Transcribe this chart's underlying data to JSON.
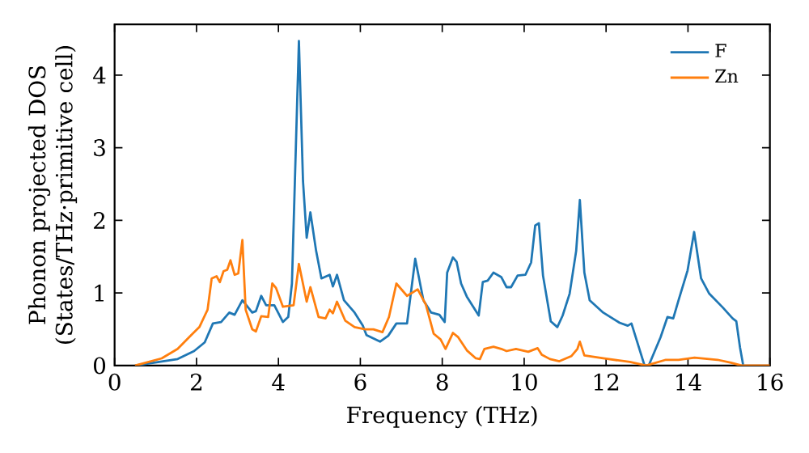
{
  "chart_data": {
    "type": "line",
    "xlabel": "Frequency (THz)",
    "ylabel": "Phonon projected DOS (States/THz·primitive cell)",
    "xlim": [
      0,
      16
    ],
    "ylim": [
      0,
      4.7
    ],
    "xticks": [
      0,
      2,
      4,
      6,
      8,
      10,
      12,
      14,
      16
    ],
    "yticks": [
      0,
      1,
      2,
      3,
      4
    ],
    "legend": "top right",
    "grid": false,
    "series": [
      {
        "name": "F",
        "color": "#1f77b4",
        "x": [
          0.5,
          1.54,
          1.94,
          2.2,
          2.4,
          2.6,
          2.8,
          2.93,
          3.12,
          3.36,
          3.45,
          3.58,
          3.7,
          3.83,
          3.9,
          4.11,
          4.24,
          4.33,
          4.5,
          4.6,
          4.69,
          4.78,
          4.92,
          5.05,
          5.25,
          5.33,
          5.43,
          5.6,
          5.86,
          6.06,
          6.15,
          6.48,
          6.68,
          6.88,
          7.14,
          7.34,
          7.54,
          7.73,
          7.93,
          8.06,
          8.12,
          8.26,
          8.35,
          8.46,
          8.6,
          8.89,
          8.99,
          9.11,
          9.25,
          9.44,
          9.57,
          9.68,
          9.84,
          10.03,
          10.17,
          10.27,
          10.36,
          10.46,
          10.65,
          10.81,
          10.94,
          11.11,
          11.27,
          11.36,
          11.47,
          11.6,
          11.93,
          12.33,
          12.53,
          12.62,
          12.94,
          13.04,
          13.33,
          13.5,
          13.64,
          13.77,
          13.99,
          14.15,
          14.32,
          14.52,
          14.85,
          15.09,
          15.18,
          15.27,
          15.35
        ],
        "values": [
          0,
          0.09,
          0.2,
          0.32,
          0.58,
          0.6,
          0.73,
          0.7,
          0.9,
          0.73,
          0.75,
          0.96,
          0.83,
          0.83,
          0.83,
          0.6,
          0.67,
          1.13,
          4.47,
          2.54,
          1.76,
          2.11,
          1.58,
          1.2,
          1.25,
          1.09,
          1.25,
          0.9,
          0.73,
          0.55,
          0.42,
          0.33,
          0.41,
          0.58,
          0.58,
          1.47,
          0.9,
          0.73,
          0.7,
          0.6,
          1.28,
          1.49,
          1.43,
          1.13,
          0.95,
          0.69,
          1.15,
          1.17,
          1.28,
          1.22,
          1.08,
          1.08,
          1.24,
          1.25,
          1.42,
          1.93,
          1.96,
          1.24,
          0.61,
          0.53,
          0.69,
          0.99,
          1.58,
          2.28,
          1.28,
          0.9,
          0.73,
          0.59,
          0.55,
          0.58,
          0,
          0,
          0.39,
          0.67,
          0.65,
          0.9,
          1.31,
          1.84,
          1.2,
          0.99,
          0.8,
          0.65,
          0.61,
          0.25,
          0
        ]
      },
      {
        "name": "Zn",
        "color": "#ff7f0e",
        "x": [
          0.5,
          1.15,
          1.54,
          1.87,
          2.07,
          2.27,
          2.37,
          2.49,
          2.57,
          2.66,
          2.75,
          2.83,
          2.93,
          3.02,
          3.12,
          3.2,
          3.36,
          3.45,
          3.58,
          3.75,
          3.85,
          3.94,
          4.11,
          4.37,
          4.5,
          4.69,
          4.78,
          4.98,
          5.15,
          5.25,
          5.33,
          5.43,
          5.63,
          5.86,
          6.12,
          6.32,
          6.54,
          6.7,
          6.88,
          7.14,
          7.4,
          7.6,
          7.79,
          7.96,
          8.08,
          8.26,
          8.39,
          8.6,
          8.82,
          8.92,
          9.03,
          9.25,
          9.44,
          9.57,
          9.8,
          10.1,
          10.33,
          10.43,
          10.63,
          10.86,
          11.15,
          11.3,
          11.36,
          11.47,
          11.93,
          12.58,
          12.98,
          13.46,
          13.77,
          14.16,
          14.72,
          15.05,
          15.31,
          16.0
        ],
        "values": [
          0,
          0.1,
          0.23,
          0.42,
          0.53,
          0.77,
          1.2,
          1.23,
          1.15,
          1.3,
          1.32,
          1.45,
          1.25,
          1.27,
          1.73,
          0.77,
          0.5,
          0.47,
          0.68,
          0.67,
          1.13,
          1.07,
          0.81,
          0.83,
          1.4,
          0.88,
          1.08,
          0.67,
          0.65,
          0.77,
          0.72,
          0.88,
          0.62,
          0.53,
          0.5,
          0.5,
          0.46,
          0.67,
          1.13,
          0.96,
          1.05,
          0.84,
          0.44,
          0.36,
          0.23,
          0.45,
          0.39,
          0.21,
          0.1,
          0.09,
          0.23,
          0.26,
          0.23,
          0.2,
          0.23,
          0.19,
          0.24,
          0.15,
          0.09,
          0.06,
          0.13,
          0.23,
          0.33,
          0.14,
          0.1,
          0.05,
          0,
          0.08,
          0.08,
          0.11,
          0.08,
          0.04,
          0,
          0
        ]
      }
    ]
  }
}
